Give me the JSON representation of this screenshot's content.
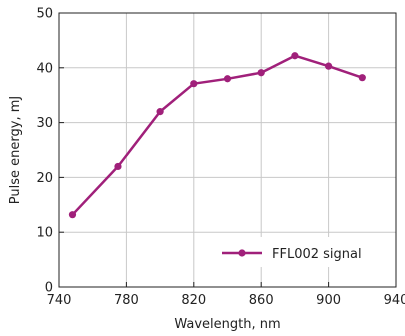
{
  "chart_data": {
    "type": "line",
    "title": "",
    "xlabel": "Wavelength, nm",
    "ylabel": "Pulse energy, mJ",
    "xlim": [
      740,
      940
    ],
    "ylim": [
      0,
      50
    ],
    "x_ticks": [
      740,
      780,
      820,
      860,
      900,
      940
    ],
    "y_ticks": [
      0,
      10,
      20,
      30,
      40,
      50
    ],
    "grid": true,
    "legend_position": "bottom-right",
    "series": [
      {
        "name": "FFL002 signal",
        "color": "#a0207a",
        "marker": "circle",
        "x": [
          748,
          775,
          800,
          820,
          840,
          860,
          880,
          900,
          920
        ],
        "y": [
          13.2,
          22,
          32,
          37.1,
          38,
          39.1,
          42.2,
          40.3,
          38.2
        ]
      }
    ]
  }
}
